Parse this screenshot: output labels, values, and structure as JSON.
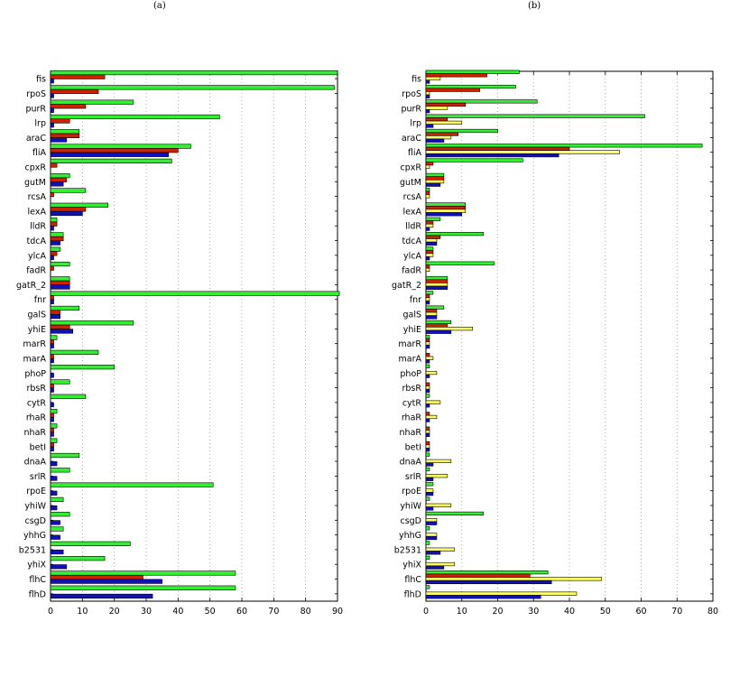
{
  "panels": [
    "(a)",
    "(b)"
  ],
  "colors": {
    "green": "#33ee33",
    "red": "#cc2200",
    "yellow": "#ffff66",
    "blue": "#1111bb",
    "grid": "#9a9a9a"
  },
  "chart_data": [
    {
      "type": "bar",
      "orientation": "horizontal",
      "panel_label": "(a)",
      "categories": [
        "fis",
        "rpoS",
        "purR",
        "lrp",
        "araC",
        "fliA",
        "cpxR",
        "gutM",
        "rcsA",
        "lexA",
        "lldR",
        "tdcA",
        "ylcA",
        "fadR",
        "gatR_2",
        "fnr",
        "galS",
        "yhiE",
        "marR",
        "marA",
        "phoP",
        "rbsR",
        "cytR",
        "rhaR",
        "nhaR",
        "betI",
        "dnaA",
        "srlR",
        "rpoE",
        "yhiW",
        "csgD",
        "yhhG",
        "b2531",
        "yhiX",
        "flhC",
        "flhD"
      ],
      "series": [
        {
          "color": "#33ee33",
          "values": [
            90,
            89,
            26,
            53,
            9,
            44,
            38,
            6,
            11,
            18,
            2,
            4,
            3,
            6,
            6,
            91,
            9,
            26,
            2,
            15,
            20,
            6,
            11,
            2,
            2,
            2,
            9,
            6,
            51,
            4,
            6,
            4,
            25,
            17,
            58,
            58
          ]
        },
        {
          "color": "#cc2200",
          "values": [
            17,
            15,
            11,
            6,
            9,
            40,
            2,
            5,
            1,
            11,
            2,
            4,
            2,
            1,
            6,
            1,
            3,
            6,
            1,
            1,
            0,
            1,
            0,
            1,
            1,
            1,
            0,
            0,
            0,
            0,
            0,
            0,
            0,
            0,
            29,
            0
          ]
        },
        {
          "color": "#1111bb",
          "values": [
            1,
            1,
            1,
            1,
            5,
            37,
            0,
            4,
            0,
            10,
            1,
            3,
            1,
            0,
            6,
            1,
            3,
            7,
            1,
            1,
            1,
            1,
            1,
            1,
            1,
            1,
            2,
            2,
            2,
            2,
            3,
            3,
            4,
            5,
            35,
            32
          ]
        }
      ],
      "xlim": [
        0,
        90
      ],
      "xticks": [
        0,
        10,
        20,
        30,
        40,
        50,
        60,
        70,
        80,
        90
      ],
      "grid": "vertical dotted"
    },
    {
      "type": "bar",
      "orientation": "horizontal",
      "panel_label": "(b)",
      "categories": [
        "fis",
        "rpoS",
        "purR",
        "lrp",
        "araC",
        "fliA",
        "cpxR",
        "gutM",
        "rcsA",
        "lexA",
        "lldR",
        "tdcA",
        "ylcA",
        "fadR",
        "gatR_2",
        "fnr",
        "galS",
        "yhiE",
        "marR",
        "marA",
        "phoP",
        "rbsR",
        "cytR",
        "rhaR",
        "nhaR",
        "betI",
        "dnaA",
        "srlR",
        "rpoE",
        "yhiW",
        "csgD",
        "yhhG",
        "b2531",
        "yhiX",
        "flhC",
        "flhD"
      ],
      "series": [
        {
          "color": "#33ee33",
          "values": [
            26,
            25,
            31,
            61,
            20,
            77,
            27,
            5,
            1,
            11,
            4,
            16,
            2,
            19,
            6,
            2,
            5,
            7,
            1,
            0,
            1,
            0,
            1,
            0,
            0,
            0,
            1,
            1,
            2,
            1,
            16,
            1,
            1,
            1,
            34,
            1
          ]
        },
        {
          "color": "#cc2200",
          "values": [
            17,
            15,
            11,
            6,
            9,
            40,
            2,
            5,
            1,
            11,
            2,
            4,
            2,
            1,
            6,
            1,
            3,
            6,
            1,
            1,
            0,
            1,
            0,
            1,
            1,
            1,
            0,
            0,
            0,
            0,
            0,
            0,
            0,
            0,
            29,
            0
          ]
        },
        {
          "color": "#ffff66",
          "values": [
            4,
            1,
            6,
            10,
            7,
            54,
            1,
            5,
            1,
            11,
            2,
            3,
            2,
            1,
            6,
            1,
            3,
            13,
            1,
            2,
            3,
            1,
            4,
            3,
            1,
            1,
            7,
            6,
            2,
            7,
            3,
            3,
            8,
            8,
            49,
            42
          ]
        },
        {
          "color": "#1111bb",
          "values": [
            1,
            1,
            1,
            2,
            5,
            37,
            0,
            4,
            0,
            10,
            1,
            3,
            1,
            0,
            6,
            1,
            3,
            7,
            1,
            1,
            1,
            1,
            1,
            1,
            1,
            1,
            2,
            2,
            2,
            2,
            3,
            3,
            4,
            5,
            35,
            32
          ]
        }
      ],
      "xlim": [
        0,
        80
      ],
      "xticks": [
        0,
        10,
        20,
        30,
        40,
        50,
        60,
        70,
        80
      ],
      "grid": "vertical dotted"
    }
  ]
}
